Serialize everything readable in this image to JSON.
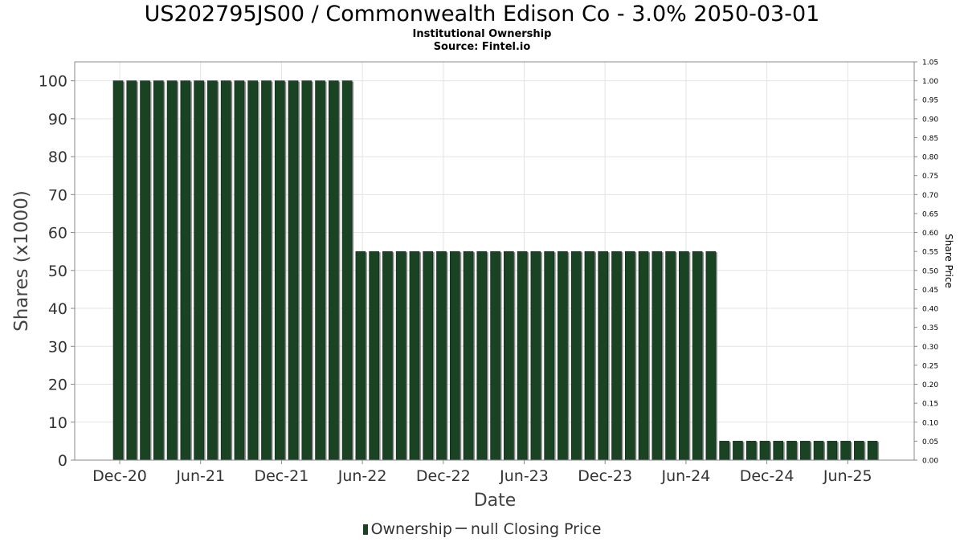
{
  "chart_data": {
    "type": "bar",
    "title": "US202795JS00 / Commonwealth Edison Co - 3.0% 2050-03-01",
    "subtitle": "Institutional Ownership",
    "source": "Source: Fintel.io",
    "xlabel": "Date",
    "ylabel": "Shares (x1000)",
    "y2label": "Share Price",
    "ylim": [
      0,
      105
    ],
    "y2lim": [
      0,
      1.05
    ],
    "yticks": [
      0,
      10,
      20,
      30,
      40,
      50,
      60,
      70,
      80,
      90,
      100
    ],
    "y2ticks": [
      "0.00",
      "0.05",
      "0.10",
      "0.15",
      "0.20",
      "0.25",
      "0.30",
      "0.35",
      "0.40",
      "0.45",
      "0.50",
      "0.55",
      "0.60",
      "0.65",
      "0.70",
      "0.75",
      "0.80",
      "0.85",
      "0.90",
      "0.95",
      "1.00",
      "1.05"
    ],
    "xticks": [
      "Dec-20",
      "Jun-21",
      "Dec-21",
      "Jun-22",
      "Dec-22",
      "Jun-23",
      "Dec-23",
      "Jun-24",
      "Dec-24",
      "Jun-25"
    ],
    "grid": true,
    "legend_position": "bottom",
    "series": [
      {
        "name": "Ownership",
        "type": "bar",
        "color": "#1a4324",
        "values": [
          100,
          100,
          100,
          100,
          100,
          100,
          100,
          100,
          100,
          100,
          100,
          100,
          100,
          100,
          100,
          100,
          100,
          100,
          55,
          55,
          55,
          55,
          55,
          55,
          55,
          55,
          55,
          55,
          55,
          55,
          55,
          55,
          55,
          55,
          55,
          55,
          55,
          55,
          55,
          55,
          55,
          55,
          55,
          55,
          55,
          5,
          5,
          5,
          5,
          5,
          5,
          5,
          5,
          5,
          5,
          5,
          5
        ]
      },
      {
        "name": "null Closing Price",
        "type": "line",
        "color": "#555555",
        "values": []
      }
    ]
  }
}
